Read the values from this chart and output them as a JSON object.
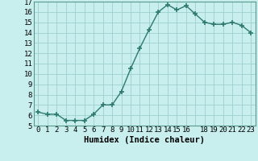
{
  "x": [
    0,
    1,
    2,
    3,
    4,
    5,
    6,
    7,
    8,
    9,
    10,
    11,
    12,
    13,
    14,
    15,
    16,
    17,
    18,
    19,
    20,
    21,
    22,
    23
  ],
  "y": [
    6.3,
    6.1,
    6.1,
    5.5,
    5.5,
    5.5,
    6.1,
    7.0,
    7.0,
    8.3,
    10.5,
    12.5,
    14.3,
    16.0,
    16.7,
    16.2,
    16.6,
    15.8,
    15.0,
    14.8,
    14.8,
    15.0,
    14.7,
    14.0
  ],
  "line_color": "#2d7a6e",
  "bg_color": "#c8eeee",
  "grid_color": "#9ecece",
  "xlabel": "Humidex (Indice chaleur)",
  "xlim": [
    -0.5,
    23.5
  ],
  "ylim": [
    5,
    17
  ],
  "yticks": [
    5,
    6,
    7,
    8,
    9,
    10,
    11,
    12,
    13,
    14,
    15,
    16,
    17
  ],
  "xtick_labels": [
    "0",
    "1",
    "2",
    "3",
    "4",
    "5",
    "6",
    "7",
    "8",
    "9",
    "10",
    "11",
    "12",
    "13",
    "14",
    "15",
    "16",
    "",
    "18",
    "19",
    "20",
    "21",
    "22",
    "23"
  ],
  "marker": "+",
  "markersize": 4,
  "linewidth": 1.0,
  "tick_fontsize": 6.5,
  "xlabel_fontsize": 7.5
}
